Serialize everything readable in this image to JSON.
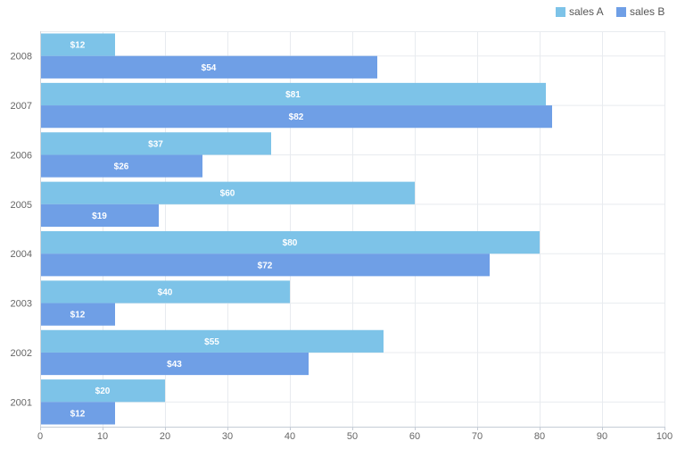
{
  "chart_data": {
    "type": "bar",
    "orientation": "horizontal",
    "categories": [
      "2008",
      "2007",
      "2006",
      "2005",
      "2004",
      "2003",
      "2002",
      "2001"
    ],
    "series": [
      {
        "name": "sales A",
        "color": "#7dc3e8",
        "values": [
          12,
          81,
          37,
          60,
          80,
          40,
          55,
          20
        ]
      },
      {
        "name": "sales B",
        "color": "#6f9fe6",
        "values": [
          54,
          82,
          26,
          19,
          72,
          12,
          43,
          12
        ]
      }
    ],
    "data_label_prefix": "$",
    "xlim": [
      0,
      100
    ],
    "xticks": [
      0,
      10,
      20,
      30,
      40,
      50,
      60,
      70,
      80,
      90,
      100
    ],
    "grid": true,
    "legend_position": "top-right",
    "title": "",
    "xlabel": "",
    "ylabel": ""
  }
}
